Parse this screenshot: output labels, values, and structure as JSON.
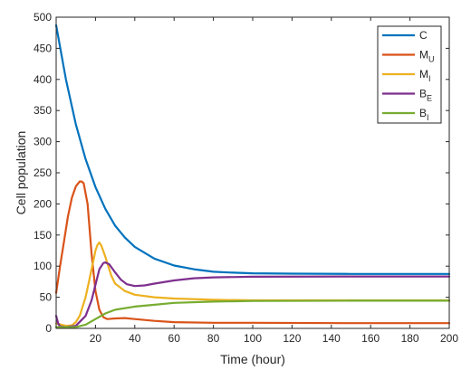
{
  "chart_data": {
    "type": "line",
    "title": "",
    "xlabel": "Time (hour)",
    "ylabel": "Cell population",
    "xlim": [
      0,
      200
    ],
    "ylim": [
      0,
      500
    ],
    "xticks": [
      20,
      40,
      60,
      80,
      100,
      120,
      140,
      160,
      180,
      200
    ],
    "yticks": [
      0,
      50,
      100,
      150,
      200,
      250,
      300,
      350,
      400,
      450,
      500
    ],
    "grid": false,
    "legend_position": "top-right",
    "series": [
      {
        "name": "C",
        "base": "C",
        "sub": "",
        "color": "#0072BD",
        "points": [
          [
            0,
            487
          ],
          [
            5,
            400
          ],
          [
            10,
            328
          ],
          [
            15,
            272
          ],
          [
            20,
            227
          ],
          [
            25,
            192
          ],
          [
            30,
            165
          ],
          [
            35,
            146
          ],
          [
            40,
            131
          ],
          [
            50,
            112
          ],
          [
            60,
            101
          ],
          [
            70,
            95
          ],
          [
            80,
            91
          ],
          [
            90,
            89.5
          ],
          [
            100,
            88.5
          ],
          [
            120,
            88
          ],
          [
            150,
            87.5
          ],
          [
            200,
            87.5
          ]
        ]
      },
      {
        "name": "M_U",
        "base": "M",
        "sub": "U",
        "color": "#D95319",
        "points": [
          [
            0,
            57
          ],
          [
            2,
            100
          ],
          [
            4,
            140
          ],
          [
            6,
            180
          ],
          [
            8,
            210
          ],
          [
            10,
            228
          ],
          [
            12,
            236
          ],
          [
            13,
            236
          ],
          [
            14,
            233
          ],
          [
            16,
            200
          ],
          [
            18,
            120
          ],
          [
            20,
            60
          ],
          [
            22,
            30
          ],
          [
            24,
            18
          ],
          [
            26,
            15
          ],
          [
            30,
            16
          ],
          [
            35,
            16.5
          ],
          [
            40,
            15
          ],
          [
            50,
            12
          ],
          [
            60,
            10
          ],
          [
            80,
            9
          ],
          [
            100,
            9
          ],
          [
            150,
            8.5
          ],
          [
            200,
            8.5
          ]
        ]
      },
      {
        "name": "M_I",
        "base": "M",
        "sub": "I",
        "color": "#EDB120",
        "points": [
          [
            0,
            8
          ],
          [
            5,
            4
          ],
          [
            8,
            5
          ],
          [
            10,
            10
          ],
          [
            12,
            20
          ],
          [
            15,
            50
          ],
          [
            18,
            95
          ],
          [
            20,
            125
          ],
          [
            21,
            134
          ],
          [
            22,
            138
          ],
          [
            23,
            133
          ],
          [
            25,
            115
          ],
          [
            28,
            85
          ],
          [
            30,
            72
          ],
          [
            35,
            60
          ],
          [
            40,
            54
          ],
          [
            50,
            50
          ],
          [
            60,
            48
          ],
          [
            80,
            46
          ],
          [
            100,
            45
          ],
          [
            150,
            45
          ],
          [
            200,
            45
          ]
        ]
      },
      {
        "name": "B_E",
        "base": "B",
        "sub": "E",
        "color": "#7E2F8E",
        "points": [
          [
            0,
            20
          ],
          [
            1,
            8
          ],
          [
            2,
            3
          ],
          [
            5,
            2
          ],
          [
            10,
            4
          ],
          [
            15,
            20
          ],
          [
            18,
            45
          ],
          [
            20,
            70
          ],
          [
            22,
            95
          ],
          [
            24,
            105
          ],
          [
            25,
            106
          ],
          [
            27,
            103
          ],
          [
            30,
            90
          ],
          [
            33,
            78
          ],
          [
            36,
            71
          ],
          [
            40,
            68
          ],
          [
            45,
            69
          ],
          [
            50,
            72
          ],
          [
            60,
            77
          ],
          [
            70,
            80.5
          ],
          [
            80,
            82
          ],
          [
            100,
            83
          ],
          [
            150,
            83.5
          ],
          [
            200,
            83.5
          ]
        ]
      },
      {
        "name": "B_I",
        "base": "B",
        "sub": "I",
        "color": "#77AC30",
        "points": [
          [
            0,
            2
          ],
          [
            10,
            2
          ],
          [
            15,
            6
          ],
          [
            20,
            15
          ],
          [
            25,
            24
          ],
          [
            30,
            30
          ],
          [
            40,
            35
          ],
          [
            50,
            38
          ],
          [
            60,
            41
          ],
          [
            80,
            43
          ],
          [
            100,
            44
          ],
          [
            150,
            44.5
          ],
          [
            200,
            44.5
          ]
        ]
      }
    ]
  }
}
